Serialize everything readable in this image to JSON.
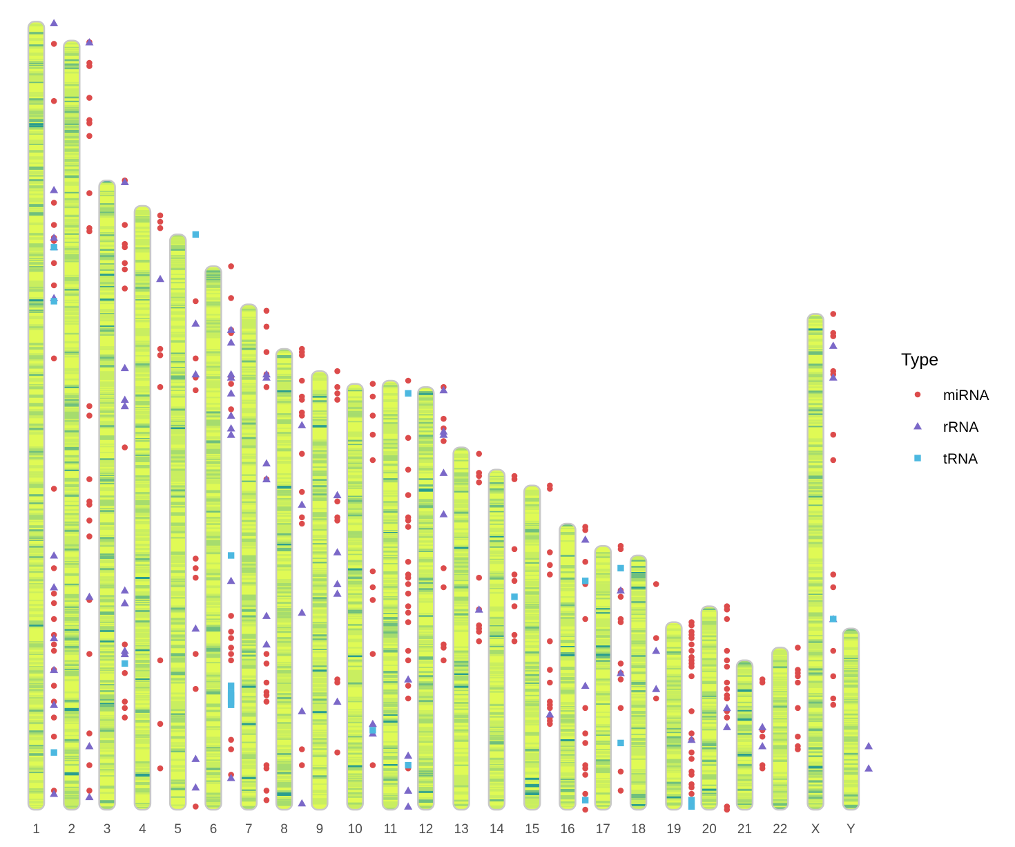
{
  "chart_data": {
    "type": "scatter",
    "ideogram": true,
    "categories": [
      "1",
      "2",
      "3",
      "4",
      "5",
      "6",
      "7",
      "8",
      "9",
      "10",
      "11",
      "12",
      "13",
      "14",
      "15",
      "16",
      "17",
      "18",
      "19",
      "20",
      "21",
      "22",
      "X",
      "Y"
    ],
    "chromosome_length_mb": [
      248,
      242,
      198,
      190,
      181,
      171,
      159,
      145,
      138,
      134,
      135,
      133,
      114,
      107,
      102,
      90,
      83,
      80,
      59,
      64,
      47,
      51,
      156,
      57
    ],
    "density_colors": [
      "#e0fa55",
      "#c9ee60",
      "#a6dc6e",
      "#6fbf7e",
      "#2a9d8f"
    ],
    "legend": {
      "title": "Type",
      "position": "right",
      "items": [
        {
          "label": "miRNA",
          "color": "#dc4b4b",
          "shape": "circle"
        },
        {
          "label": "rRNA",
          "color": "#7b68c8",
          "shape": "triangle"
        },
        {
          "label": "tRNA",
          "color": "#4cb8e0",
          "shape": "square"
        }
      ]
    },
    "series": [
      {
        "name": "miRNA",
        "points": [
          [
            "1",
            [
              7,
              25,
              57,
              64,
              68,
              69,
              76,
              83,
              106,
              147,
              172,
              180,
              183,
              188,
              193,
              196,
              198,
              204,
              209,
              214,
              219,
              225,
              242
            ]
          ],
          [
            "2",
            [
              0.5,
              7,
              8,
              18,
              25,
              26,
              30,
              48,
              59,
              60,
              115,
              118,
              138,
              145,
              146,
              151,
              156,
              176,
              193,
              218,
              228,
              236
            ]
          ],
          [
            "3",
            [
              0,
              14,
              20,
              21,
              26,
              28,
              34,
              84,
              146,
              155,
              164,
              166,
              169
            ]
          ],
          [
            "4",
            [
              3,
              5,
              7,
              45,
              47,
              57,
              143,
              163,
              177
            ]
          ],
          [
            "5",
            [
              0,
              21,
              39,
              45,
              49,
              102,
              105,
              108,
              132,
              143,
              180
            ]
          ],
          [
            "6",
            [
              0,
              10,
              20,
              21,
              35,
              37,
              45,
              110,
              115,
              117,
              120,
              122,
              124,
              149,
              152,
              160
            ]
          ],
          [
            "7",
            [
              2,
              7,
              15,
              22,
              26,
              55,
              110,
              113,
              119,
              122,
              123,
              125,
              145,
              146,
              153,
              156
            ]
          ],
          [
            "8",
            [
              0,
              1,
              2,
              10,
              15,
              16,
              20,
              21,
              33,
              45,
              53,
              55,
              126,
              131
            ]
          ],
          [
            "9",
            [
              0,
              5,
              7,
              9,
              41,
              46,
              47,
              97,
              98,
              120
            ]
          ],
          [
            "10",
            [
              0,
              4,
              10,
              16,
              24,
              59,
              64,
              68,
              85,
              120
            ]
          ],
          [
            "11",
            [
              0,
              18,
              28,
              36,
              43,
              44,
              46,
              57,
              61,
              62,
              64,
              67,
              71,
              73,
              76,
              85,
              88,
              96,
              100,
              122
            ]
          ],
          [
            "12",
            [
              0,
              10,
              13,
              17,
              57,
              63,
              81,
              82,
              86
            ]
          ],
          [
            "13",
            [
              2,
              8,
              9,
              11,
              41,
              51,
              56,
              57,
              58,
              61
            ]
          ],
          [
            "14",
            [
              2,
              3,
              25,
              33,
              35,
              43,
              52,
              54
            ]
          ],
          [
            "15",
            [
              0,
              1,
              21,
              25,
              28,
              49,
              58,
              62,
              68,
              69,
              70,
              73,
              74,
              75
            ]
          ],
          [
            "16",
            [
              1,
              2,
              12,
              19,
              30,
              58,
              66,
              69,
              76,
              77,
              79,
              85,
              90
            ]
          ],
          [
            "17",
            [
              0,
              1,
              14,
              16,
              23,
              24,
              37,
              40,
              42,
              51,
              71,
              77
            ]
          ],
          [
            "18",
            [
              9,
              26,
              45
            ]
          ],
          [
            "19",
            [
              0,
              1,
              3,
              4,
              5,
              7,
              9,
              11,
              12,
              13,
              14,
              17,
              28,
              35,
              37,
              41,
              43,
              47,
              48,
              51,
              52,
              54,
              57,
              58
            ]
          ],
          [
            "20",
            [
              0,
              1,
              4,
              14,
              17,
              19,
              24,
              26,
              28,
              29,
              33,
              35,
              63,
              64
            ]
          ],
          [
            "21",
            [
              6,
              7,
              22,
              24,
              33,
              34
            ]
          ],
          [
            "22",
            [
              0,
              7,
              8,
              9,
              11,
              19,
              28,
              31,
              32
            ]
          ],
          [
            "X",
            [
              0,
              6,
              7,
              18,
              19,
              38,
              46,
              82,
              86,
              106,
              114,
              121,
              123
            ]
          ],
          [
            "Y",
            []
          ]
        ]
      },
      {
        "name": "rRNA",
        "points": [
          [
            "1",
            [
              0.5,
              53,
              68,
              71,
              87,
              168,
              178,
              194,
              204,
              215,
              243
            ]
          ],
          [
            "2",
            [
              0.5,
              175,
              222,
              238
            ]
          ],
          [
            "3",
            [
              0.5,
              59,
              69,
              71,
              129,
              133,
              148,
              149
            ]
          ],
          [
            "4",
            [
              23
            ]
          ],
          [
            "5",
            [
              28,
              44,
              124,
              165,
              174
            ]
          ],
          [
            "6",
            [
              20,
              24,
              34,
              35,
              40,
              47,
              51,
              53,
              99,
              161
            ]
          ],
          [
            "7",
            [
              22,
              23,
              50,
              55,
              98,
              107
            ]
          ],
          [
            "8",
            [
              24,
              49,
              83,
              114,
              143
            ]
          ],
          [
            "9",
            [
              39,
              57,
              67,
              70,
              104
            ]
          ],
          [
            "10",
            [
              107,
              110
            ]
          ],
          [
            "11",
            [
              94,
              118,
              129,
              134
            ]
          ],
          [
            "12",
            [
              1,
              14,
              15,
              27,
              40
            ]
          ],
          [
            "13",
            [
              51
            ]
          ],
          [
            "14",
            []
          ],
          [
            "15",
            [
              72
            ]
          ],
          [
            "16",
            [
              5,
              51
            ]
          ],
          [
            "17",
            [
              14,
              40
            ]
          ],
          [
            "18",
            [
              30,
              42
            ]
          ],
          [
            "19",
            [
              37
            ]
          ],
          [
            "20",
            [
              32,
              38
            ]
          ],
          [
            "21",
            [
              21,
              27
            ]
          ],
          [
            "22",
            []
          ],
          [
            "X",
            [
              10,
              20,
              96
            ]
          ],
          [
            "Y",
            [
              37,
              44
            ]
          ]
        ]
      },
      {
        "name": "tRNA",
        "points": [
          [
            "1",
            [
              71,
              88,
              230
            ]
          ],
          [
            "2",
            []
          ],
          [
            "3",
            [
              152
            ]
          ],
          [
            "4",
            []
          ],
          [
            "5",
            [
              0
            ]
          ],
          [
            "6",
            [
              91,
              132,
              134,
              135,
              136,
              137,
              138
            ]
          ],
          [
            "7",
            []
          ],
          [
            "8",
            []
          ],
          [
            "9",
            []
          ],
          [
            "10",
            [
              109
            ]
          ],
          [
            "11",
            [
              4,
              121
            ]
          ],
          [
            "12",
            []
          ],
          [
            "13",
            []
          ],
          [
            "14",
            [
              40
            ]
          ],
          [
            "15",
            []
          ],
          [
            "16",
            [
              18,
              87
            ]
          ],
          [
            "17",
            [
              7,
              62
            ]
          ],
          [
            "18",
            []
          ],
          [
            "19",
            [
              56,
              58
            ]
          ],
          [
            "20",
            []
          ],
          [
            "21",
            []
          ],
          [
            "22",
            []
          ],
          [
            "X",
            [
              96
            ]
          ],
          [
            "Y",
            []
          ]
        ]
      }
    ],
    "xlabel": "",
    "ylabel": "",
    "grid": false
  }
}
